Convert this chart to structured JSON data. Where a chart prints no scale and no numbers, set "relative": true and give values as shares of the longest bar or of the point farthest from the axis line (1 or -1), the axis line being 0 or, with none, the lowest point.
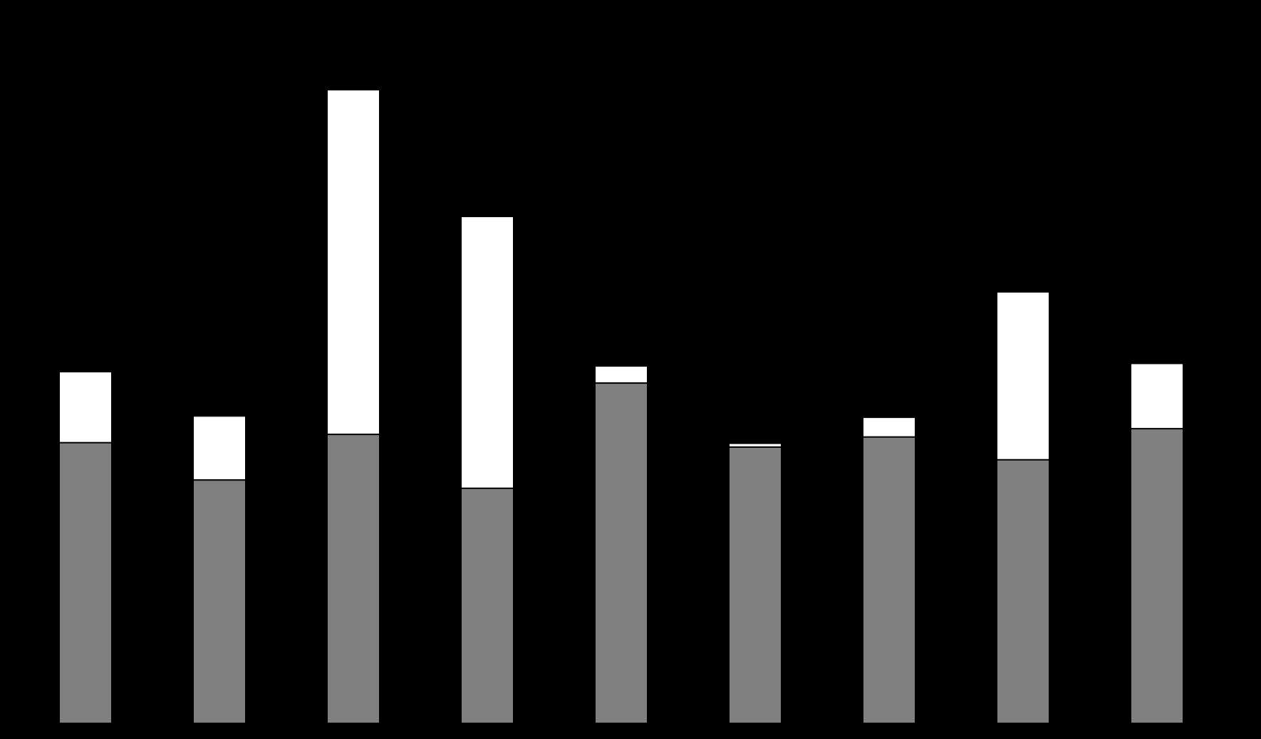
{
  "chart_data": {
    "type": "bar",
    "relative": true,
    "stacked": true,
    "categories": [
      null,
      null,
      null,
      null,
      null,
      null,
      null,
      null,
      null
    ],
    "series": [
      {
        "color": "#808080",
        "values": [
          0.443,
          0.384,
          0.456,
          0.371,
          0.537,
          0.436,
          0.452,
          0.416,
          0.465
        ]
      },
      {
        "color": "#ffffff",
        "values": [
          0.112,
          0.101,
          0.544,
          0.429,
          0.027,
          0.006,
          0.031,
          0.265,
          0.103
        ]
      }
    ]
  }
}
